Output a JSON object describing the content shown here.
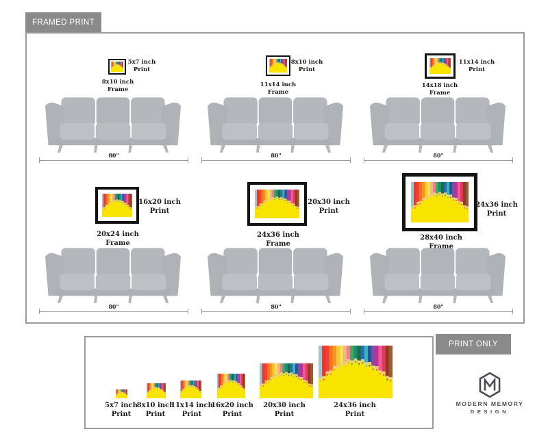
{
  "framed_section": {
    "badge_label": "FRAMED PRINT",
    "scenes": [
      {
        "print_size": "5x7 inch",
        "print_word": "Print",
        "frame_size": "8x10 inch",
        "frame_word": "Frame",
        "sofa_width": "80\""
      },
      {
        "print_size": "8x10 inch",
        "print_word": "Print",
        "frame_size": "11x14 inch",
        "frame_word": "Frame",
        "sofa_width": "80\""
      },
      {
        "print_size": "11x14 inch",
        "print_word": "Print",
        "frame_size": "14x18 inch",
        "frame_word": "Frame",
        "sofa_width": "80\""
      },
      {
        "print_size": "16x20 inch",
        "print_word": "Print",
        "frame_size": "20x24 inch",
        "frame_word": "Frame",
        "sofa_width": "80\""
      },
      {
        "print_size": "20x30 inch",
        "print_word": "Print",
        "frame_size": "24x36 inch",
        "frame_word": "Frame",
        "sofa_width": "80\""
      },
      {
        "print_size": "24x36 inch",
        "print_word": "Print",
        "frame_size": "28x40 inch",
        "frame_word": "Frame",
        "sofa_width": "80\""
      }
    ]
  },
  "print_section": {
    "badge_label": "PRINT ONLY",
    "items": [
      {
        "size": "5x7 inch",
        "word": "Print"
      },
      {
        "size": "8x10 inch",
        "word": "Print"
      },
      {
        "size": "11x14 inch",
        "word": "Print"
      },
      {
        "size": "16x20 inch",
        "word": "Print"
      },
      {
        "size": "20x30 inch",
        "word": "Print"
      },
      {
        "size": "24x36 inch",
        "word": "Print"
      }
    ]
  },
  "logo": {
    "line1": "MODERN MEMORY",
    "line2": "DESIGN"
  },
  "artwork": {
    "background": "#f9e400",
    "wood_tip": "#eac9a0",
    "pencil_colors": [
      "#9fc6cf",
      "#e6382b",
      "#ef4136",
      "#f4731f",
      "#f7941d",
      "#f9c440",
      "#f5e642",
      "#f2b38e",
      "#f07f8e",
      "#3aaa5c",
      "#1f8a70",
      "#157145",
      "#2b6cb0",
      "#36b3c0",
      "#2a5298",
      "#7d4fa0",
      "#c22f93",
      "#ef5ba1",
      "#e63950",
      "#8c3b2e",
      "#a05a2c"
    ]
  },
  "colors": {
    "badge_bg": "#8a8a8a",
    "badge_text": "#ffffff",
    "box_border": "#9b9b9b",
    "frame_border": "#131313",
    "label_text": "#1e1e1e",
    "sofa_gray": "#b5b9bd",
    "logo_gray": "#4b4b52"
  }
}
